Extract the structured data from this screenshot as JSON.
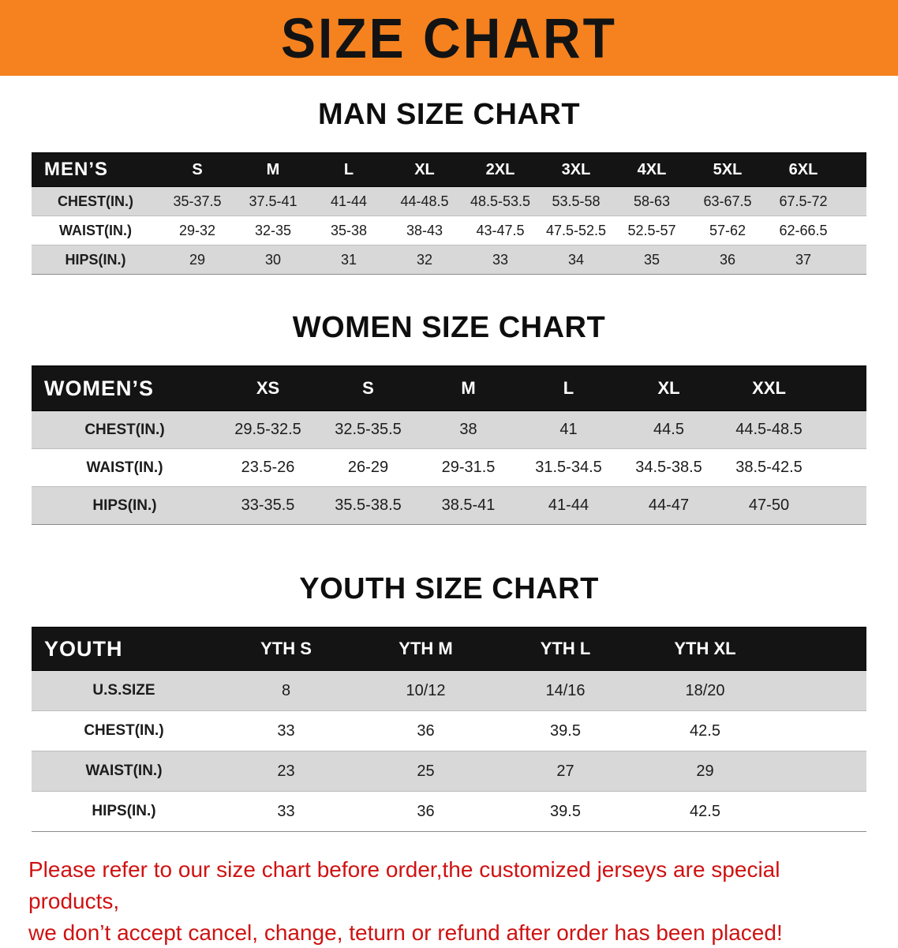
{
  "banner": {
    "title": "SIZE CHART"
  },
  "colors": {
    "banner_bg": "#f5821f",
    "header_bg": "#141414",
    "row_alt": "#d8d8d8",
    "disclaimer_color": "#cf1212"
  },
  "sections": [
    {
      "id": "men",
      "title": "MAN SIZE CHART",
      "header_label": "MEN’S",
      "sizes": [
        "S",
        "M",
        "L",
        "XL",
        "2XL",
        "3XL",
        "4XL",
        "5XL",
        "6XL"
      ],
      "rows": [
        {
          "label": "CHEST(IN.)",
          "values": [
            "35-37.5",
            "37.5-41",
            "41-44",
            "44-48.5",
            "48.5-53.5",
            "53.5-58",
            "58-63",
            "63-67.5",
            "67.5-72"
          ]
        },
        {
          "label": "WAIST(IN.)",
          "values": [
            "29-32",
            "32-35",
            "35-38",
            "38-43",
            "43-47.5",
            "47.5-52.5",
            "52.5-57",
            "57-62",
            "62-66.5"
          ]
        },
        {
          "label": "HIPS(IN.)",
          "values": [
            "29",
            "30",
            "31",
            "32",
            "33",
            "34",
            "35",
            "36",
            "37"
          ]
        }
      ]
    },
    {
      "id": "women",
      "title": "WOMEN SIZE CHART",
      "header_label": "WOMEN’S",
      "sizes": [
        "XS",
        "S",
        "M",
        "L",
        "XL",
        "XXL"
      ],
      "rows": [
        {
          "label": "CHEST(IN.)",
          "values": [
            "29.5-32.5",
            "32.5-35.5",
            "38",
            "41",
            "44.5",
            "44.5-48.5"
          ]
        },
        {
          "label": "WAIST(IN.)",
          "values": [
            "23.5-26",
            "26-29",
            "29-31.5",
            "31.5-34.5",
            "34.5-38.5",
            "38.5-42.5"
          ]
        },
        {
          "label": "HIPS(IN.)",
          "values": [
            "33-35.5",
            "35.5-38.5",
            "38.5-41",
            "41-44",
            "44-47",
            "47-50"
          ]
        }
      ]
    },
    {
      "id": "youth",
      "title": "YOUTH SIZE CHART",
      "header_label": "YOUTH",
      "sizes": [
        "YTH S",
        "YTH M",
        "YTH L",
        "YTH XL"
      ],
      "rows": [
        {
          "label": "U.S.SIZE",
          "values": [
            "8",
            "10/12",
            "14/16",
            "18/20"
          ]
        },
        {
          "label": "CHEST(IN.)",
          "values": [
            "33",
            "36",
            "39.5",
            "42.5"
          ]
        },
        {
          "label": "WAIST(IN.)",
          "values": [
            "23",
            "25",
            "27",
            "29"
          ]
        },
        {
          "label": "HIPS(IN.)",
          "values": [
            "33",
            "36",
            "39.5",
            "42.5"
          ]
        }
      ]
    }
  ],
  "disclaimer": {
    "line1": "Please refer to our size chart before order,the customized jerseys are special products,",
    "line2": "we don’t accept cancel, change, teturn or refund after order has been placed!"
  }
}
